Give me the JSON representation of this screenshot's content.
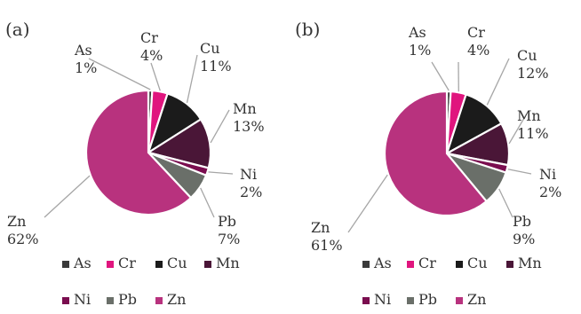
{
  "chart_data": [
    {
      "type": "pie",
      "panel_label": "(a)",
      "categories": [
        "As",
        "Cr",
        "Cu",
        "Mn",
        "Ni",
        "Pb",
        "Zn"
      ],
      "values": [
        1,
        4,
        11,
        13,
        2,
        7,
        62
      ],
      "value_labels": [
        "1%",
        "4%",
        "11%",
        "13%",
        "2%",
        "7%",
        "62%"
      ],
      "legend_rows": [
        [
          "As",
          "Cr",
          "Cu",
          "Mn"
        ],
        [
          "Ni",
          "Pb",
          "Zn"
        ]
      ],
      "legend_position": "bottom"
    },
    {
      "type": "pie",
      "panel_label": "(b)",
      "categories": [
        "As",
        "Cr",
        "Cu",
        "Mn",
        "Ni",
        "Pb",
        "Zn"
      ],
      "values": [
        1,
        4,
        12,
        11,
        2,
        9,
        61
      ],
      "value_labels": [
        "1%",
        "4%",
        "12%",
        "11%",
        "2%",
        "9%",
        "61%"
      ],
      "legend_rows": [
        [
          "As",
          "Cr",
          "Cu",
          "Mn"
        ],
        [
          "Ni",
          "Pb",
          "Zn"
        ]
      ],
      "legend_position": "bottom"
    }
  ],
  "colors": {
    "As": "#3a3a3a",
    "Cr": "#e0157e",
    "Cu": "#1b1b1b",
    "Mn": "#4a1637",
    "Ni": "#7a0d4f",
    "Pb": "#6a6f69",
    "Zn": "#b8327e",
    "leader": "#a6a6a6"
  }
}
